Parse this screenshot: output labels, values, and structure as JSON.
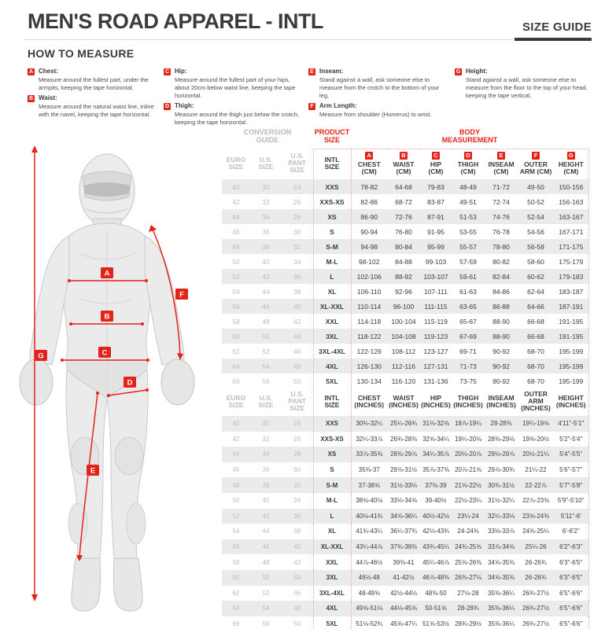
{
  "header": {
    "title": "MEN'S ROAD APPAREL - INTL",
    "size_guide_label": "SIZE GUIDE"
  },
  "how_to_measure": {
    "heading": "HOW TO MEASURE",
    "items": [
      {
        "letter": "A",
        "label": "Chest:",
        "text": "Measure around the fullest part, under the armpits, keeping the tape horizontal."
      },
      {
        "letter": "B",
        "label": "Waist:",
        "text": "Measure around the natural waist line, inline with the navel, keeping the tape horizontal."
      },
      {
        "letter": "C",
        "label": "Hip:",
        "text": "Measure around the fullest part of your hips, about 20cm below waist line, keeping the tape horizontal."
      },
      {
        "letter": "D",
        "label": "Thigh:",
        "text": "Measure around the thigh just below the crotch, keeping the tape horizontal."
      },
      {
        "letter": "E",
        "label": "Inseam:",
        "text": "Stand against a wall, ask someone else to measure from the crotch to the bottom of your leg."
      },
      {
        "letter": "F",
        "label": "Arm Length:",
        "text": "Measure from shoulder (Humerus) to wrist."
      },
      {
        "letter": "G",
        "label": "Height:",
        "text": "Stand against a wall, ask someone else to measure from the floor to the top of your head, keeping the tape vertical."
      }
    ]
  },
  "figure": {
    "markers": [
      "A",
      "B",
      "C",
      "D",
      "E",
      "F",
      "G"
    ]
  },
  "colors": {
    "accent_red": "#E2231A",
    "dark_text": "#3B3B3B",
    "muted_text": "#BCBCBC",
    "row_stripe": "#EBEBEB"
  },
  "tables": {
    "cm": {
      "widths": [
        36,
        40,
        40,
        48,
        46,
        42,
        40,
        42,
        42,
        46,
        44
      ],
      "groups": [
        {
          "label": "CONVERSION\nGUIDE",
          "span": 3,
          "style": "muted"
        },
        {
          "label": "PRODUCT\nSIZE",
          "span": 1,
          "style": "red"
        },
        {
          "label": "BODY\nMEASUREMENT",
          "span": 7,
          "style": "red"
        }
      ],
      "columns": [
        {
          "id": "euro",
          "label": "EURO\nSIZE",
          "cls": "muted"
        },
        {
          "id": "us",
          "label": "U.S.\nSIZE",
          "cls": "muted"
        },
        {
          "id": "pant",
          "label": "U.S.\nPANT SIZE",
          "cls": "muted"
        },
        {
          "id": "intl",
          "label": "INTL\nSIZE",
          "cls": "dl dr dcol strong"
        },
        {
          "id": "chest",
          "label": "CHEST\n(CM)",
          "badge": "A",
          "cls": "dl dcol"
        },
        {
          "id": "waist",
          "label": "WAIST\n(CM)",
          "badge": "B",
          "cls": "dcol"
        },
        {
          "id": "hip",
          "label": "HIP\n(CM)",
          "badge": "C",
          "cls": "dcol"
        },
        {
          "id": "thigh",
          "label": "THIGH\n(CM)",
          "badge": "D",
          "cls": "dcol"
        },
        {
          "id": "inseam",
          "label": "INSEAM\n(CM)",
          "badge": "E",
          "cls": "dcol"
        },
        {
          "id": "outer_arm",
          "label": "OUTER\nARM (CM)",
          "badge": "F",
          "cls": "dcol"
        },
        {
          "id": "height",
          "label": "HEIGHT\n(CM)",
          "badge": "G",
          "cls": "dr dcol"
        }
      ],
      "rows": [
        [
          "40",
          "30",
          "24",
          "XXS",
          "78-82",
          "64-68",
          "79-83",
          "48-49",
          "71-72",
          "49-50",
          "150-156"
        ],
        [
          "42",
          "32",
          "26",
          "XXS-XS",
          "82-86",
          "68-72",
          "83-87",
          "49-51",
          "72-74",
          "50-52",
          "156-163"
        ],
        [
          "44",
          "34",
          "28",
          "XS",
          "86-90",
          "72-76",
          "87-91",
          "51-53",
          "74-76",
          "52-54",
          "163-167"
        ],
        [
          "46",
          "36",
          "30",
          "S",
          "90-94",
          "76-80",
          "91-95",
          "53-55",
          "76-78",
          "54-56",
          "167-171"
        ],
        [
          "48",
          "38",
          "32",
          "S-M",
          "94-98",
          "80-84",
          "95-99",
          "55-57",
          "78-80",
          "56-58",
          "171-175"
        ],
        [
          "50",
          "40",
          "34",
          "M-L",
          "98-102",
          "84-88",
          "99-103",
          "57-59",
          "80-82",
          "58-60",
          "175-179"
        ],
        [
          "52",
          "42",
          "36",
          "L",
          "102-106",
          "88-92",
          "103-107",
          "59-61",
          "82-84",
          "60-62",
          "179-183"
        ],
        [
          "54",
          "44",
          "38",
          "XL",
          "106-110",
          "92-96",
          "107-111",
          "61-63",
          "84-86",
          "62-64",
          "183-187"
        ],
        [
          "56",
          "46",
          "40",
          "XL-XXL",
          "110-114",
          "96-100",
          "111-115",
          "63-65",
          "86-88",
          "64-66",
          "187-191"
        ],
        [
          "58",
          "48",
          "42",
          "XXL",
          "114-118",
          "100-104",
          "115-119",
          "65-67",
          "88-90",
          "66-68",
          "191-195"
        ],
        [
          "60",
          "50",
          "44",
          "3XL",
          "118-122",
          "104-108",
          "119-123",
          "67-69",
          "88-90",
          "66-68",
          "191-195"
        ],
        [
          "62",
          "52",
          "46",
          "3XL-4XL",
          "122-126",
          "108-112",
          "123-127",
          "69-71",
          "90-92",
          "68-70",
          "195-199"
        ],
        [
          "64",
          "54",
          "48",
          "4XL",
          "126-130",
          "112-116",
          "127-131",
          "71-73",
          "90-92",
          "68-70",
          "195-199"
        ],
        [
          "66",
          "56",
          "50",
          "5XL",
          "130-134",
          "116-120",
          "131-136",
          "73-75",
          "90-92",
          "68-70",
          "195-199"
        ]
      ]
    },
    "inches": {
      "widths": [
        36,
        40,
        40,
        48,
        46,
        42,
        40,
        42,
        42,
        46,
        44
      ],
      "columns": [
        {
          "id": "euro",
          "label": "EURO\nSIZE",
          "cls": "muted"
        },
        {
          "id": "us",
          "label": "U.S.\nSIZE",
          "cls": "muted"
        },
        {
          "id": "pant",
          "label": "U.S.\nPANT SIZE",
          "cls": "muted"
        },
        {
          "id": "intl",
          "label": "INTL\nSIZE",
          "cls": "dl dr dcol strong"
        },
        {
          "id": "chest",
          "label": "CHEST\n(INCHES)",
          "cls": "dl dcol"
        },
        {
          "id": "waist",
          "label": "WAIST\n(INCHES)",
          "cls": "dcol"
        },
        {
          "id": "hip",
          "label": "HIP\n(INCHES)",
          "cls": "dcol"
        },
        {
          "id": "thigh",
          "label": "THIGH\n(INCHES)",
          "cls": "dcol"
        },
        {
          "id": "inseam",
          "label": "INSEAM\n(INCHES)",
          "cls": "dcol"
        },
        {
          "id": "outer_arm",
          "label": "OUTER ARM\n(INCHES)",
          "cls": "dcol"
        },
        {
          "id": "height",
          "label": "HEIGHT\n(INCHES)",
          "cls": "dr dcol"
        }
      ],
      "rows": [
        [
          "40",
          "30",
          "24",
          "XXS",
          "30¾-32¼",
          "25¼-26¾",
          "31⅛-32⅝",
          "18⅞-19¼",
          "28-28⅜",
          "19¼-19⅝",
          "4'11\"-5'1\""
        ],
        [
          "42",
          "32",
          "26",
          "XXS-XS",
          "32¼-33⅞",
          "26¾-28⅜",
          "32⅝-34¼",
          "19¼-20⅛",
          "28⅜-29⅛",
          "19⅝-20½",
          "5'2\"-5'4\""
        ],
        [
          "44",
          "34",
          "28",
          "XS",
          "33⅞-35⅜",
          "28⅜-29⅞",
          "34¼-35⅞",
          "20⅛-20⅞",
          "29⅛-29⅞",
          "20½-21¼",
          "5'4\"-5'5\""
        ],
        [
          "46",
          "36",
          "30",
          "S",
          "35⅜-37",
          "29⅞-31½",
          "35⅞-37⅜",
          "20⅞-21⅝",
          "29⅞-30¾",
          "21¼-22",
          "5'6\"-5'7\""
        ],
        [
          "48",
          "38",
          "32",
          "S-M",
          "37-38⅝",
          "31½-33⅛",
          "37⅜-39",
          "21⅝-22½",
          "30¾-31½",
          "22-22⅞",
          "5'7\"-5'8\""
        ],
        [
          "50",
          "40",
          "34",
          "M-L",
          "38⅝-40⅛",
          "33⅛-34⅝",
          "39-40½",
          "22½-23¼",
          "31½-32¼",
          "22⅞-23⅝",
          "5'9\"-5'10\""
        ],
        [
          "52",
          "42",
          "36",
          "L",
          "40⅛-41¾",
          "34⅝-36¼",
          "40½-42⅛",
          "23¼-24",
          "32¼-33⅛",
          "23⅝-24⅜",
          "5'11\"-6'"
        ],
        [
          "54",
          "44",
          "38",
          "XL",
          "41¾-43¼",
          "36¼-37¾",
          "42⅛-43¾",
          "24-24¾",
          "33⅛-33⅞",
          "24⅜-25¼",
          "6'-6'2\""
        ],
        [
          "56",
          "46",
          "40",
          "XL-XXL",
          "43¼-44⅞",
          "37¾-39⅜",
          "43¾-45¼",
          "24¾-25⅝",
          "33⅞-34⅝",
          "25¼-26",
          "6'2\"-6'3\""
        ],
        [
          "58",
          "48",
          "42",
          "XXL",
          "44⅞-46½",
          "39⅜-41",
          "45¼-46⅞",
          "25⅝-26⅜",
          "34⅝-35⅜",
          "26-26¾",
          "6'3\"-6'5\""
        ],
        [
          "60",
          "50",
          "44",
          "3XL",
          "46½-48",
          "41-42½",
          "46⅞-48⅜",
          "26⅜-27⅛",
          "34⅝-35⅜",
          "26-26¾",
          "6'3\"-6'5\""
        ],
        [
          "62",
          "52",
          "46",
          "3XL-4XL",
          "48-49⅝",
          "42½-44⅛",
          "48⅜-50",
          "27⅛-28",
          "35⅜-36¼",
          "26¾-27½",
          "6'5\"-6'6\""
        ],
        [
          "64",
          "54",
          "48",
          "4XL",
          "49⅝-51⅛",
          "44⅛-45⅝",
          "50-51⅝",
          "28-28¾",
          "35⅜-36¼",
          "26¾-27½",
          "6'5\"-6'6\""
        ],
        [
          "66",
          "56",
          "50",
          "5XL",
          "51⅛-52¾",
          "45⅝-47¼",
          "51⅝-53½",
          "28¾-29½",
          "35⅜-36¼",
          "26¾-27½",
          "6'5\"-6'6\""
        ]
      ]
    }
  }
}
